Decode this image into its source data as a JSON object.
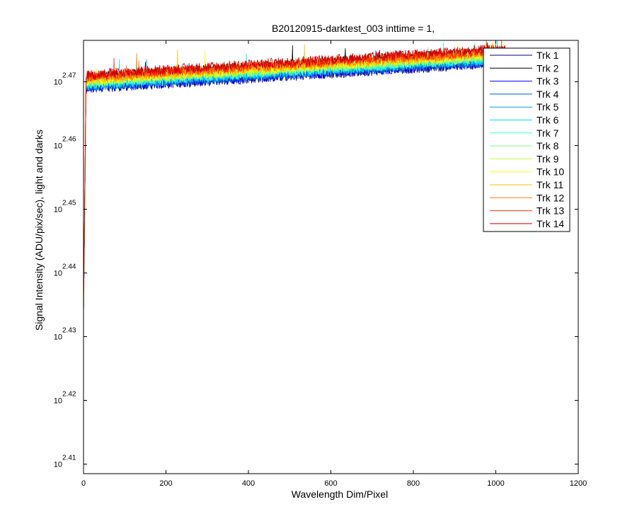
{
  "chart_data": {
    "type": "line",
    "title": "B20120915-darktest_003 inttime = 1,",
    "xlabel": "Wavelength Dim/Pixel",
    "ylabel": "Signal Intensity (ADU/pix/sec), light and darks",
    "xlim": [
      0,
      1200
    ],
    "ylim_exponent": [
      2.4085,
      2.4765
    ],
    "y_scale": "log",
    "xticks": [
      "0",
      "200",
      "400",
      "600",
      "800",
      "1000",
      "1200"
    ],
    "yticks": [
      {
        "base": "10",
        "exp": "2.41",
        "value": 2.41
      },
      {
        "base": "10",
        "exp": "2.42",
        "value": 2.42
      },
      {
        "base": "10",
        "exp": "2.43",
        "value": 2.43
      },
      {
        "base": "10",
        "exp": "2.44",
        "value": 2.44
      },
      {
        "base": "10",
        "exp": "2.45",
        "value": 2.45
      },
      {
        "base": "10",
        "exp": "2.46",
        "value": 2.46
      },
      {
        "base": "10",
        "exp": "2.47",
        "value": 2.47
      }
    ],
    "grid": false,
    "legend_position": "top-right",
    "x_points": [
      0,
      3,
      6,
      10,
      100,
      200,
      300,
      400,
      500,
      600,
      700,
      800,
      900,
      1000,
      1024
    ],
    "series": [
      {
        "name": "Trk 1",
        "color": "#000080",
        "y": [
          2.433,
          2.45,
          2.468,
          2.469,
          2.4693,
          2.4697,
          2.4701,
          2.4705,
          2.4709,
          2.4713,
          2.4717,
          2.4721,
          2.4725,
          2.4729,
          2.473
        ]
      },
      {
        "name": "Trk 2",
        "color": "#000000",
        "y": [
          2.434,
          2.452,
          2.47,
          2.4707,
          2.4711,
          2.4715,
          2.4719,
          2.4723,
          2.4727,
          2.4731,
          2.4735,
          2.4739,
          2.4743,
          2.4747,
          2.4748
        ]
      },
      {
        "name": "Trk 3",
        "color": "#0000ff",
        "y": [
          2.433,
          2.45,
          2.4685,
          2.469,
          2.4694,
          2.4698,
          2.4702,
          2.4706,
          2.471,
          2.4714,
          2.4718,
          2.4722,
          2.4726,
          2.473,
          2.4731
        ]
      },
      {
        "name": "Trk 4",
        "color": "#0060c0",
        "y": [
          2.4332,
          2.4502,
          2.4686,
          2.4692,
          2.4696,
          2.47,
          2.4704,
          2.4708,
          2.4712,
          2.4716,
          2.472,
          2.4724,
          2.4728,
          2.4732,
          2.4733
        ]
      },
      {
        "name": "Trk 5",
        "color": "#00a0e0",
        "y": [
          2.4333,
          2.4503,
          2.4688,
          2.4694,
          2.4698,
          2.4702,
          2.4706,
          2.471,
          2.4714,
          2.4718,
          2.4722,
          2.4726,
          2.473,
          2.4734,
          2.4735
        ]
      },
      {
        "name": "Trk 6",
        "color": "#00e0ff",
        "y": [
          2.4334,
          2.4504,
          2.469,
          2.4695,
          2.4699,
          2.4703,
          2.4707,
          2.4711,
          2.4715,
          2.4719,
          2.4723,
          2.4727,
          2.4731,
          2.4735,
          2.4736
        ]
      },
      {
        "name": "Trk 7",
        "color": "#40ffd0",
        "y": [
          2.4335,
          2.4505,
          2.4692,
          2.4697,
          2.4701,
          2.4705,
          2.4709,
          2.4713,
          2.4717,
          2.4721,
          2.4725,
          2.4729,
          2.4733,
          2.4737,
          2.4738
        ]
      },
      {
        "name": "Trk 8",
        "color": "#80ff80",
        "y": [
          2.4336,
          2.4506,
          2.4694,
          2.4699,
          2.4703,
          2.4707,
          2.4711,
          2.4715,
          2.4719,
          2.4723,
          2.4727,
          2.4731,
          2.4735,
          2.4739,
          2.474
        ]
      },
      {
        "name": "Trk 9",
        "color": "#c0ff40",
        "y": [
          2.4337,
          2.4507,
          2.4696,
          2.4701,
          2.4705,
          2.4709,
          2.4713,
          2.4717,
          2.4721,
          2.4725,
          2.4729,
          2.4733,
          2.4737,
          2.4741,
          2.4742
        ]
      },
      {
        "name": "Trk 10",
        "color": "#ffff00",
        "y": [
          2.4338,
          2.4508,
          2.4697,
          2.4702,
          2.4706,
          2.471,
          2.4714,
          2.4718,
          2.4722,
          2.4726,
          2.473,
          2.4734,
          2.4738,
          2.4742,
          2.4743
        ]
      },
      {
        "name": "Trk 11",
        "color": "#ffc000",
        "y": [
          2.4339,
          2.4509,
          2.4699,
          2.4704,
          2.4708,
          2.4712,
          2.4716,
          2.472,
          2.4724,
          2.4728,
          2.4732,
          2.4736,
          2.474,
          2.4744,
          2.4745
        ]
      },
      {
        "name": "Trk 12",
        "color": "#ff8000",
        "y": [
          2.434,
          2.451,
          2.4701,
          2.4706,
          2.471,
          2.4714,
          2.4718,
          2.4722,
          2.4726,
          2.473,
          2.4734,
          2.4738,
          2.4742,
          2.4746,
          2.4747
        ]
      },
      {
        "name": "Trk 13",
        "color": "#ff3000",
        "y": [
          2.4345,
          2.4515,
          2.4703,
          2.4708,
          2.4712,
          2.4716,
          2.472,
          2.4724,
          2.4728,
          2.4732,
          2.4736,
          2.474,
          2.4744,
          2.4748,
          2.4749
        ]
      },
      {
        "name": "Trk 14",
        "color": "#d00000",
        "y": [
          2.435,
          2.452,
          2.4706,
          2.4711,
          2.4715,
          2.4719,
          2.4723,
          2.4727,
          2.4731,
          2.4735,
          2.4739,
          2.4743,
          2.4747,
          2.4751,
          2.4752
        ]
      }
    ]
  }
}
